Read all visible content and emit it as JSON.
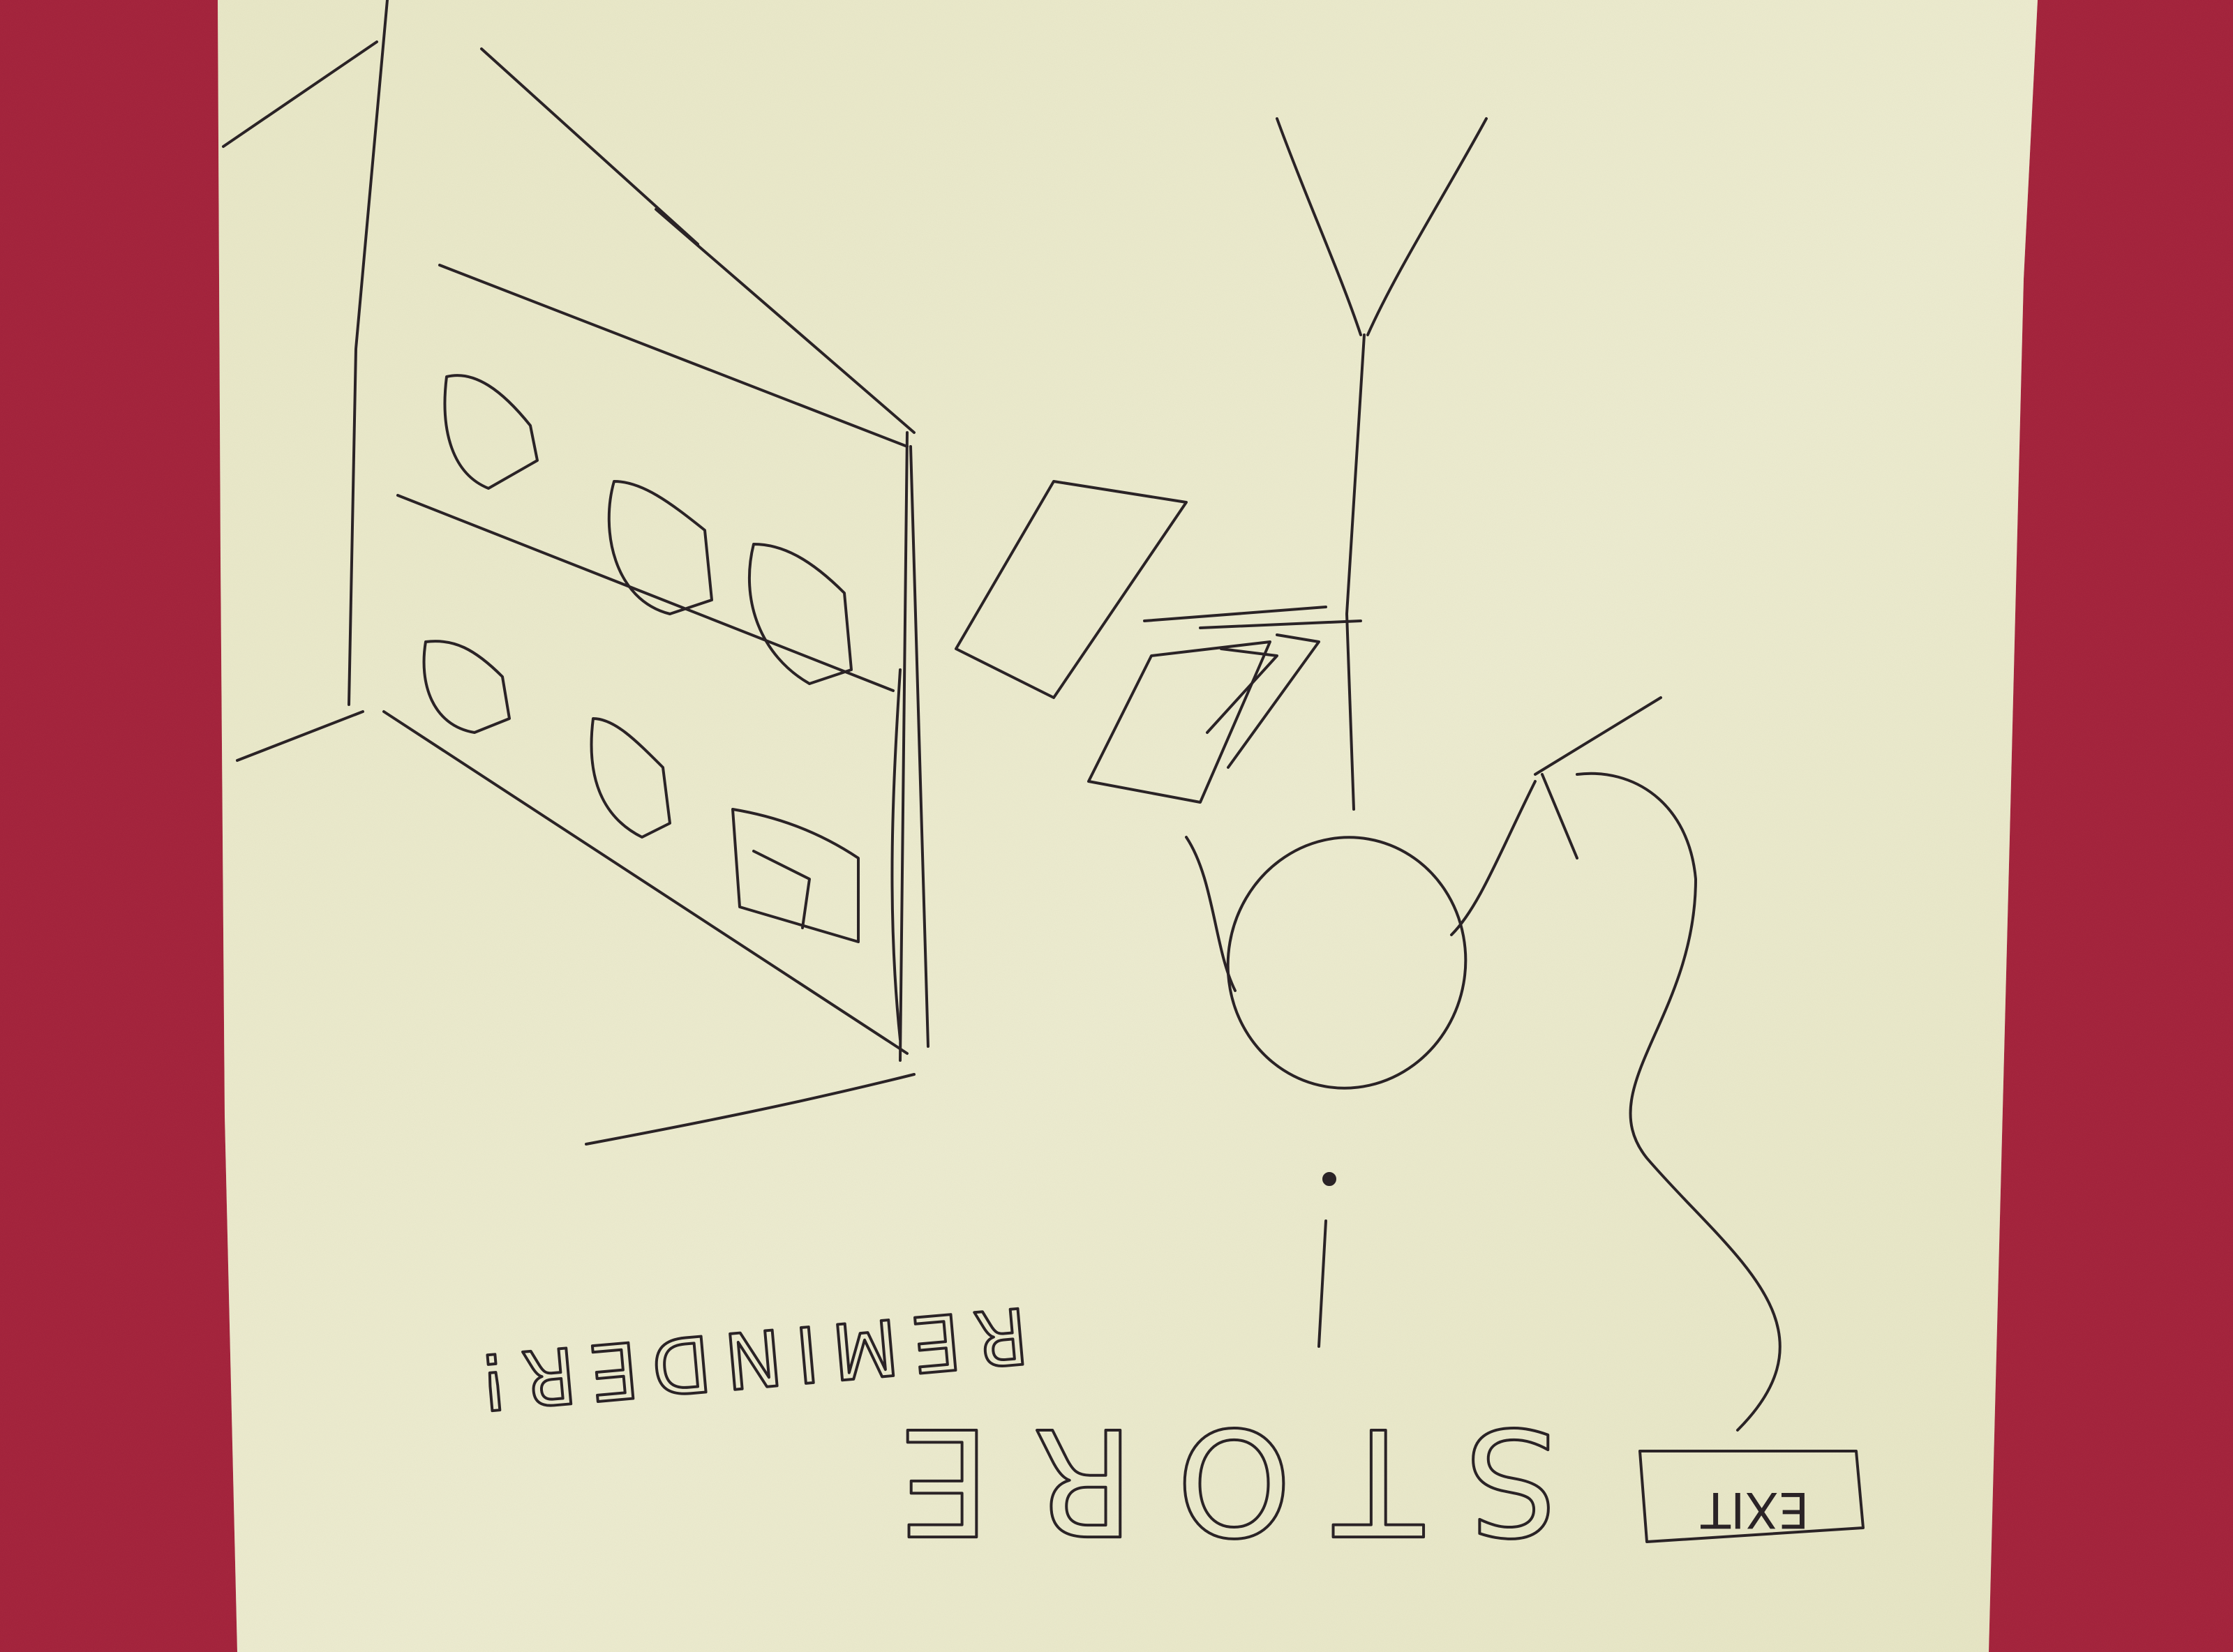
{
  "scene": {
    "kind": "photo-of-hand-drawn-sketch",
    "colors": {
      "wall": "#a8263f",
      "wall_dark": "#8e1d33",
      "paper": "#ecebcd",
      "paper_shade": "#dcdcb6",
      "ink": "#2a2326"
    }
  },
  "sketch": {
    "sign_exit": "EXIT",
    "title_store": "STORE",
    "subtitle_reminder": "REMINDER!",
    "mark": "!"
  }
}
